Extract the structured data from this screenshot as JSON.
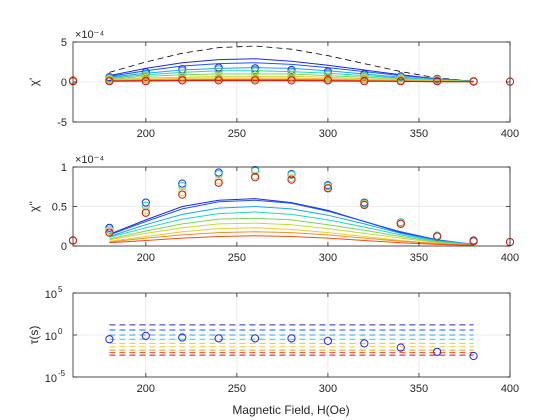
{
  "colors": {
    "axis": "#262626",
    "grid": "#dcdcdc",
    "reference_line": "#000000",
    "series_palette": [
      "#1f2ad0",
      "#1a55ff",
      "#1aa5f0",
      "#22d6c0",
      "#7fd060",
      "#c8d838",
      "#f0c838",
      "#f09028",
      "#e85018",
      "#c01818"
    ]
  },
  "chart_data": [
    {
      "id": "chi-prime",
      "type": "line",
      "ylabel": "χ'",
      "exponent_label": "×10⁻⁴",
      "xlim": [
        160,
        400
      ],
      "ylim": [
        -5,
        5
      ],
      "xticks": [
        200,
        250,
        300,
        350,
        400
      ],
      "yticks": [
        -5,
        0,
        5
      ],
      "ytick_labels": [
        "-5",
        "0",
        "5"
      ],
      "grid": true,
      "log_y": false,
      "reference_curve": {
        "style": "dashed",
        "x": [
          180,
          200,
          220,
          240,
          260,
          280,
          300,
          320,
          340,
          360,
          380
        ],
        "y": [
          1.2,
          2.5,
          3.6,
          4.3,
          4.5,
          4.1,
          3.3,
          2.3,
          1.3,
          0.5,
          0.1
        ]
      },
      "series": [
        {
          "x": [
            180,
            200,
            220,
            240,
            260,
            280,
            300,
            320,
            340,
            360,
            380
          ],
          "y": [
            0.8,
            1.7,
            2.4,
            2.8,
            2.9,
            2.6,
            2.1,
            1.5,
            0.9,
            0.4,
            0.1
          ]
        },
        {
          "x": [
            180,
            200,
            220,
            240,
            260,
            280,
            300,
            320,
            340,
            360,
            380
          ],
          "y": [
            0.7,
            1.4,
            2.0,
            2.3,
            2.4,
            2.2,
            1.8,
            1.3,
            0.8,
            0.4,
            0.1
          ]
        },
        {
          "x": [
            180,
            200,
            220,
            240,
            260,
            280,
            300,
            320,
            340,
            360,
            380
          ],
          "y": [
            0.6,
            1.1,
            1.5,
            1.7,
            1.8,
            1.7,
            1.4,
            1.0,
            0.6,
            0.3,
            0.1
          ]
        },
        {
          "x": [
            180,
            200,
            220,
            240,
            260,
            280,
            300,
            320,
            340,
            360,
            380
          ],
          "y": [
            0.5,
            0.9,
            1.2,
            1.4,
            1.4,
            1.3,
            1.1,
            0.8,
            0.5,
            0.3,
            0.1
          ]
        },
        {
          "x": [
            180,
            200,
            220,
            240,
            260,
            280,
            300,
            320,
            340,
            360,
            380
          ],
          "y": [
            0.4,
            0.7,
            0.9,
            1.0,
            1.0,
            1.0,
            0.8,
            0.6,
            0.4,
            0.2,
            0.1
          ]
        },
        {
          "x": [
            180,
            200,
            220,
            240,
            260,
            280,
            300,
            320,
            340,
            360,
            380
          ],
          "y": [
            0.3,
            0.5,
            0.6,
            0.7,
            0.7,
            0.7,
            0.6,
            0.4,
            0.3,
            0.2,
            0.05
          ]
        },
        {
          "x": [
            180,
            200,
            220,
            240,
            260,
            280,
            300,
            320,
            340,
            360,
            380
          ],
          "y": [
            0.25,
            0.35,
            0.45,
            0.5,
            0.5,
            0.5,
            0.4,
            0.3,
            0.2,
            0.1,
            0.05
          ]
        },
        {
          "x": [
            180,
            200,
            220,
            240,
            260,
            280,
            300,
            320,
            340,
            360,
            380
          ],
          "y": [
            0.2,
            0.25,
            0.3,
            0.35,
            0.35,
            0.35,
            0.3,
            0.2,
            0.15,
            0.1,
            0.05
          ]
        },
        {
          "x": [
            180,
            200,
            220,
            240,
            260,
            280,
            300,
            320,
            340,
            360,
            380
          ],
          "y": [
            0.15,
            0.2,
            0.22,
            0.25,
            0.25,
            0.25,
            0.2,
            0.15,
            0.1,
            0.05,
            0.02
          ]
        },
        {
          "x": [
            180,
            200,
            220,
            240,
            260,
            280,
            300,
            320,
            340,
            360,
            380
          ],
          "y": [
            0.1,
            0.12,
            0.15,
            0.15,
            0.15,
            0.15,
            0.12,
            0.1,
            0.07,
            0.04,
            0.02
          ]
        }
      ],
      "marker_x": [
        160,
        180,
        200,
        220,
        240,
        260,
        280,
        300,
        320,
        340,
        360,
        380,
        400
      ],
      "marker_groups": [
        {
          "y": [
            0.2,
            0.6,
            1.2,
            1.6,
            1.8,
            1.7,
            1.5,
            1.3,
            1.0,
            0.7,
            0.4,
            0.1,
            null
          ]
        },
        {
          "y": [
            0.2,
            0.5,
            1.0,
            1.4,
            1.6,
            1.5,
            1.3,
            1.1,
            0.8,
            0.6,
            0.3,
            0.1,
            null
          ]
        },
        {
          "y": [
            0.2,
            0.4,
            0.8,
            1.1,
            1.3,
            1.3,
            1.1,
            0.9,
            0.7,
            0.5,
            0.3,
            0.1,
            null
          ]
        },
        {
          "y": [
            0.2,
            0.3,
            0.5,
            0.7,
            0.8,
            0.8,
            0.7,
            0.6,
            0.5,
            0.4,
            0.2,
            0.1,
            null
          ]
        },
        {
          "y": [
            0.2,
            0.2,
            0.3,
            0.4,
            0.4,
            0.4,
            0.4,
            0.3,
            0.3,
            0.2,
            0.2,
            0.1,
            null
          ]
        },
        {
          "y": [
            0.1,
            0.1,
            0.1,
            0.2,
            0.2,
            0.2,
            0.2,
            0.2,
            0.1,
            0.1,
            0.1,
            0.05,
            0.05
          ]
        }
      ]
    },
    {
      "id": "chi-double-prime",
      "type": "line",
      "ylabel": "χ''",
      "exponent_label": "×10⁻⁴",
      "xlim": [
        160,
        400
      ],
      "ylim": [
        0,
        1
      ],
      "xticks": [
        200,
        250,
        300,
        350,
        400
      ],
      "yticks": [
        0,
        0.5,
        1
      ],
      "ytick_labels": [
        "0",
        "0.5",
        "1"
      ],
      "grid": true,
      "log_y": false,
      "series": [
        {
          "x": [
            180,
            200,
            220,
            240,
            260,
            280,
            300,
            320,
            340,
            360,
            380
          ],
          "y": [
            0.15,
            0.33,
            0.5,
            0.58,
            0.6,
            0.55,
            0.45,
            0.31,
            0.17,
            0.07,
            0.02
          ]
        },
        {
          "x": [
            180,
            200,
            220,
            240,
            260,
            280,
            300,
            320,
            340,
            360,
            380
          ],
          "y": [
            0.14,
            0.31,
            0.47,
            0.56,
            0.58,
            0.54,
            0.44,
            0.31,
            0.18,
            0.08,
            0.02
          ]
        },
        {
          "x": [
            180,
            200,
            220,
            240,
            260,
            280,
            300,
            320,
            340,
            360,
            380
          ],
          "y": [
            0.12,
            0.27,
            0.4,
            0.48,
            0.5,
            0.47,
            0.39,
            0.28,
            0.16,
            0.07,
            0.02
          ]
        },
        {
          "x": [
            180,
            200,
            220,
            240,
            260,
            280,
            300,
            320,
            340,
            360,
            380
          ],
          "y": [
            0.11,
            0.23,
            0.34,
            0.41,
            0.43,
            0.4,
            0.33,
            0.24,
            0.14,
            0.06,
            0.02
          ]
        },
        {
          "x": [
            180,
            200,
            220,
            240,
            260,
            280,
            300,
            320,
            340,
            360,
            380
          ],
          "y": [
            0.09,
            0.19,
            0.28,
            0.34,
            0.35,
            0.33,
            0.27,
            0.2,
            0.12,
            0.05,
            0.01
          ]
        },
        {
          "x": [
            180,
            200,
            220,
            240,
            260,
            280,
            300,
            320,
            340,
            360,
            380
          ],
          "y": [
            0.08,
            0.16,
            0.23,
            0.28,
            0.29,
            0.27,
            0.22,
            0.16,
            0.1,
            0.04,
            0.01
          ]
        },
        {
          "x": [
            180,
            200,
            220,
            240,
            260,
            280,
            300,
            320,
            340,
            360,
            380
          ],
          "y": [
            0.06,
            0.12,
            0.18,
            0.22,
            0.23,
            0.21,
            0.17,
            0.12,
            0.07,
            0.03,
            0.01
          ]
        },
        {
          "x": [
            180,
            200,
            220,
            240,
            260,
            280,
            300,
            320,
            340,
            360,
            380
          ],
          "y": [
            0.05,
            0.1,
            0.14,
            0.17,
            0.18,
            0.17,
            0.14,
            0.1,
            0.06,
            0.03,
            0.01
          ]
        },
        {
          "x": [
            180,
            200,
            220,
            240,
            260,
            280,
            300,
            320,
            340,
            360,
            380
          ],
          "y": [
            0.04,
            0.07,
            0.1,
            0.12,
            0.13,
            0.12,
            0.1,
            0.07,
            0.04,
            0.02,
            0.01
          ]
        }
      ],
      "marker_x": [
        160,
        180,
        200,
        220,
        240,
        260,
        280,
        300,
        320,
        340,
        360,
        380,
        400
      ],
      "marker_groups": [
        {
          "y": [
            0.07,
            0.23,
            0.55,
            0.79,
            0.93,
            0.96,
            0.91,
            0.77,
            0.55,
            0.3,
            0.13,
            0.07,
            null
          ]
        },
        {
          "y": [
            0.07,
            0.21,
            0.51,
            0.76,
            0.91,
            0.95,
            0.9,
            0.76,
            0.54,
            0.3,
            0.13,
            0.06,
            null
          ]
        },
        {
          "y": [
            0.07,
            0.19,
            0.45,
            0.68,
            0.83,
            0.89,
            0.86,
            0.74,
            0.53,
            0.29,
            0.12,
            0.06,
            null
          ]
        },
        {
          "y": [
            0.07,
            0.17,
            0.42,
            0.65,
            0.8,
            0.87,
            0.84,
            0.73,
            0.52,
            0.28,
            0.12,
            0.06,
            0.05
          ]
        }
      ]
    },
    {
      "id": "tau",
      "type": "scatter",
      "ylabel": "τ(s)",
      "xlabel": "Magnetic Field, H(Oe)",
      "xlim": [
        160,
        400
      ],
      "ylim_log10": [
        -5,
        5
      ],
      "xticks": [
        200,
        250,
        300,
        350,
        400
      ],
      "yticks_log10": [
        -5,
        0,
        5
      ],
      "ytick_base": "10",
      "ytick_exponents": [
        "-5",
        "0",
        "5"
      ],
      "grid": true,
      "log_y": true,
      "dashed_levels_log10": [
        1.2,
        0.6,
        0.0,
        -0.5,
        -1.0,
        -1.4,
        -1.8,
        -2.1,
        -2.4
      ],
      "line_x": [
        180,
        380
      ],
      "points_x": [
        180,
        200,
        220,
        240,
        260,
        280,
        300,
        320,
        340,
        360,
        380
      ],
      "points_log10_y": [
        -0.5,
        -0.1,
        -0.3,
        -0.4,
        -0.4,
        -0.4,
        -0.7,
        -1.0,
        -1.5,
        -2.0,
        -2.5
      ]
    }
  ]
}
